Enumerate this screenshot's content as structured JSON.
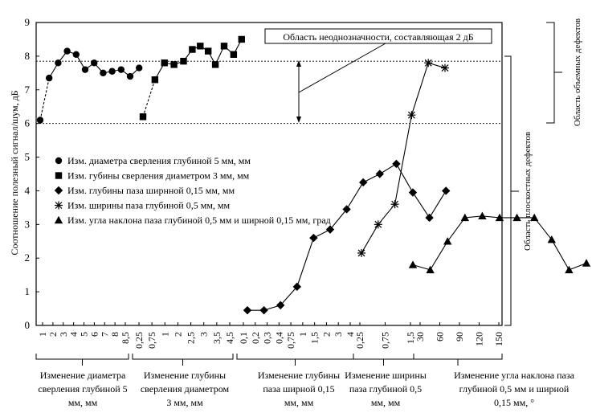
{
  "chart_data": {
    "type": "line",
    "title": "",
    "ylabel": "Соотношение полезный сигнал/шум, дБ",
    "ylim": [
      0,
      9
    ],
    "yticks": [
      "0",
      "1",
      "2",
      "3",
      "4",
      "5",
      "6",
      "7",
      "8",
      "9"
    ],
    "grid": false,
    "legend_position": "left-middle",
    "groups": [
      {
        "name": "Изм. диаметра сверления глубиной 5 мм, мм",
        "marker": "circle",
        "ticks": [
          "1",
          "2",
          "3",
          "4",
          "5",
          "6",
          "7",
          "8",
          "8,5"
        ],
        "points": [
          {
            "i": 0,
            "y": 6.1
          },
          {
            "i": 0.5,
            "y": 7.35
          },
          {
            "i": 1,
            "y": 7.8
          },
          {
            "i": 1.5,
            "y": 8.15
          },
          {
            "i": 2,
            "y": 8.05
          },
          {
            "i": 2.5,
            "y": 7.6
          },
          {
            "i": 3,
            "y": 7.8
          },
          {
            "i": 3.5,
            "y": 7.5
          },
          {
            "i": 4,
            "y": 7.55
          },
          {
            "i": 4.5,
            "y": 7.6
          },
          {
            "i": 5,
            "y": 7.4
          },
          {
            "i": 5.5,
            "y": 7.65
          }
        ],
        "dashed_segments": 2,
        "caption": [
          "Изменение диаметра",
          "сверления глубиной 5",
          "мм, мм"
        ]
      },
      {
        "name": "Изм. губины сверления диаметром 3 мм, мм",
        "marker": "square",
        "ticks": [
          "0,25",
          "0,75",
          "1",
          "2",
          "2,5",
          "3",
          "3,5",
          "4,5"
        ],
        "points": [
          {
            "i": 0,
            "y": 6.2
          },
          {
            "i": 0.75,
            "y": 7.3
          },
          {
            "i": 1.35,
            "y": 7.8
          },
          {
            "i": 1.95,
            "y": 7.75
          },
          {
            "i": 2.55,
            "y": 7.85
          },
          {
            "i": 3.1,
            "y": 8.2
          },
          {
            "i": 3.6,
            "y": 8.3
          },
          {
            "i": 4.1,
            "y": 8.15
          },
          {
            "i": 4.55,
            "y": 7.75
          },
          {
            "i": 5.1,
            "y": 8.3
          },
          {
            "i": 5.7,
            "y": 8.05
          },
          {
            "i": 6.2,
            "y": 8.5
          }
        ],
        "dashed_segments": 2,
        "caption": [
          "Изменение глубины",
          "сверления диаметром",
          "3 мм, мм"
        ]
      },
      {
        "name": "Изм. глубины паза ширнной 0,15 мм,  мм",
        "marker": "diamond",
        "ticks": [
          "0,1",
          "0,2",
          "0,3",
          "0,4",
          "0,75",
          "1",
          "1,5",
          "2",
          "3",
          "4"
        ],
        "points": [
          {
            "i": 0,
            "y": 0.45
          },
          {
            "i": 1,
            "y": 0.45
          },
          {
            "i": 2,
            "y": 0.6
          },
          {
            "i": 3,
            "y": 1.15
          },
          {
            "i": 4,
            "y": 2.6
          },
          {
            "i": 5,
            "y": 2.85
          },
          {
            "i": 6,
            "y": 3.45
          },
          {
            "i": 7,
            "y": 4.25
          },
          {
            "i": 8,
            "y": 4.5
          },
          {
            "i": 9,
            "y": 4.8
          },
          {
            "i": 10,
            "y": 3.95
          },
          {
            "i": 11,
            "y": 3.2
          },
          {
            "i": 12,
            "y": 4.0
          }
        ],
        "caption": [
          "Изменение глубины",
          "паза ширной 0,15",
          "мм, мм"
        ]
      },
      {
        "name": "Изм. ширины паза глубиной 0,5 мм, мм",
        "marker": "star",
        "ticks": [
          "0,25",
          "0,75",
          "1,5"
        ],
        "points": [
          {
            "i": 0,
            "y": 2.15
          },
          {
            "i": 1,
            "y": 3.0
          },
          {
            "i": 2,
            "y": 3.6
          },
          {
            "i": 3,
            "y": 6.25
          },
          {
            "i": 4,
            "y": 7.8
          },
          {
            "i": 5,
            "y": 7.65
          }
        ],
        "caption": [
          "Изменение ширины",
          "паза глубиной 0,5",
          "мм, мм"
        ]
      },
      {
        "name": "Изм. угла наклона паза глубиной 0,5 мм и ширной 0,15 мм, град",
        "marker": "triangle",
        "ticks": [
          "30",
          "60",
          "90",
          "120",
          "150"
        ],
        "points": [
          {
            "i": 0,
            "y": 1.8
          },
          {
            "i": 1,
            "y": 1.65
          },
          {
            "i": 2,
            "y": 2.5
          },
          {
            "i": 3,
            "y": 3.2
          },
          {
            "i": 4,
            "y": 3.25
          },
          {
            "i": 5,
            "y": 3.2
          },
          {
            "i": 6,
            "y": 3.2
          },
          {
            "i": 7,
            "y": 3.2
          },
          {
            "i": 8,
            "y": 2.55
          },
          {
            "i": 9,
            "y": 1.65
          },
          {
            "i": 10,
            "y": 1.85
          }
        ],
        "caption": [
          "Изменение угла наклона паза",
          "глубиной 0,5 мм и ширной",
          "0,15 мм, °"
        ]
      }
    ],
    "hlines": [
      7.85,
      6.0
    ],
    "annotation": "Область неоднозначности, составляющая 2 дБ",
    "side_labels": [
      "Область объемных дефектов",
      "Область плоскостных дефектов"
    ]
  }
}
